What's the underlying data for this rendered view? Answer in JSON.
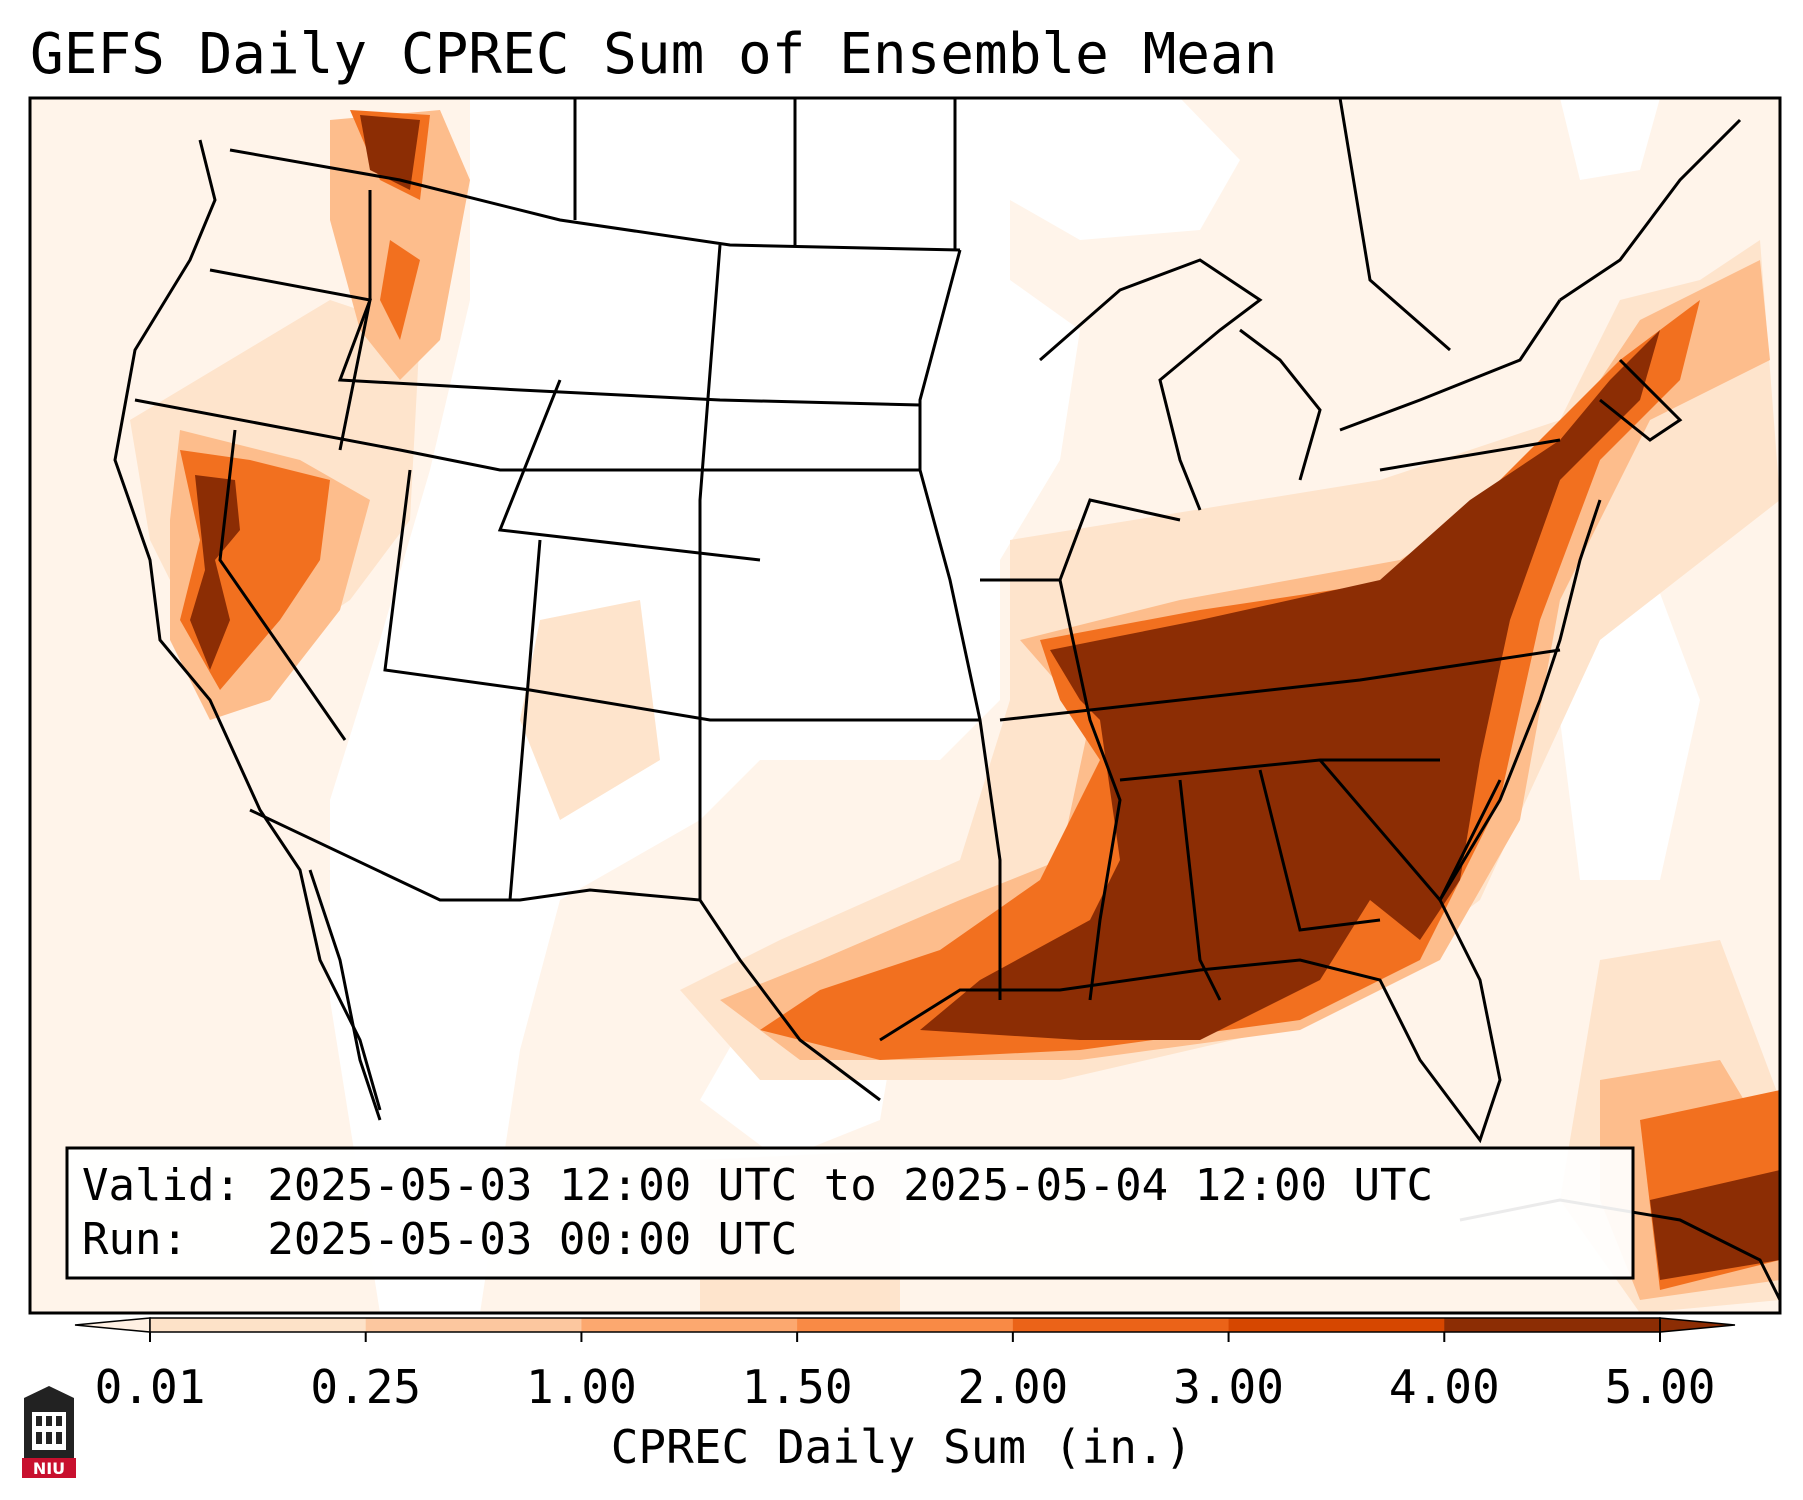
{
  "title": "GEFS Daily CPREC Sum of Ensemble Mean",
  "info_box": {
    "valid_line": "Valid: 2025-05-03 12:00 UTC to 2025-05-04 12:00 UTC",
    "run_line": "Run:   2025-05-03 00:00 UTC"
  },
  "colorbar": {
    "axis_label": "CPREC Daily Sum (in.)",
    "tick_labels": [
      "0.01",
      "0.25",
      "1.00",
      "1.50",
      "2.00",
      "3.00",
      "4.00",
      "5.00"
    ],
    "colors": [
      "#fff0e3",
      "#fde2c8",
      "#fcc79f",
      "#fca86f",
      "#f98a45",
      "#eb6318",
      "#d64700",
      "#8c2d04"
    ],
    "extend": "both"
  },
  "colors": {
    "precip_light": "#fff4ea",
    "precip_low": "#fee4cc",
    "precip_mid": "#fdbd8c",
    "precip_high": "#f2701f",
    "precip_max": "#8c2d04",
    "boundary": "#000000"
  },
  "logo": {
    "text": "NIU",
    "color": "#c8102e"
  }
}
